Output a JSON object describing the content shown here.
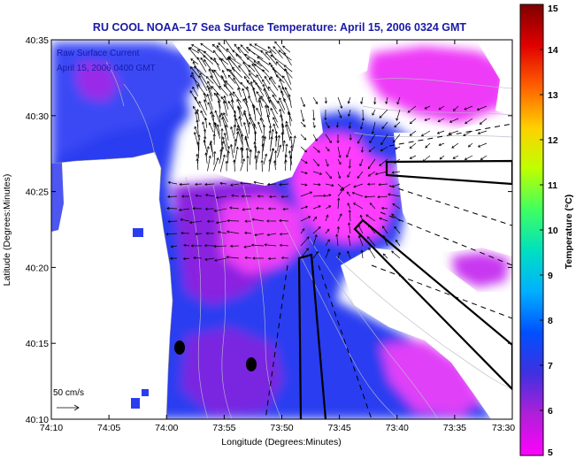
{
  "title": "RU COOL  NOAA–17  Sea Surface Temperature:  April 15, 2006 0324 GMT",
  "overlay": {
    "line1": "Raw Surface Current",
    "line2": "April 15, 2006 0400 GMT"
  },
  "x_axis": {
    "label": "Longitude (Degrees:Minutes)",
    "ticks": [
      "74:10",
      "74:05",
      "74:00",
      "73:55",
      "73:50",
      "73:45",
      "73:40",
      "73:35",
      "73:30"
    ]
  },
  "y_axis": {
    "label": "Latitude (Degrees:Minutes)",
    "ticks": [
      "40:10",
      "40:15",
      "40:20",
      "40:25",
      "40:30",
      "40:35"
    ]
  },
  "colorbar": {
    "label": "Temperature (°C)",
    "ticks": [
      "5",
      "6",
      "7",
      "8",
      "9",
      "10",
      "11",
      "12",
      "13",
      "14",
      "15"
    ],
    "range": [
      5,
      15
    ],
    "colors": [
      "#ff00ff",
      "#b020d8",
      "#4030e0",
      "#0050ff",
      "#00b0ff",
      "#00e0c0",
      "#40ff60",
      "#c0ff00",
      "#ffd000",
      "#ff6000",
      "#e00000",
      "#800000"
    ]
  },
  "scale": {
    "label": "50 cm/s"
  },
  "colors": {
    "water_warm": "#ff40ff",
    "water_mid": "#9020e0",
    "water_cool": "#3040f0",
    "land": "#ffffff",
    "vector": "#000000"
  }
}
